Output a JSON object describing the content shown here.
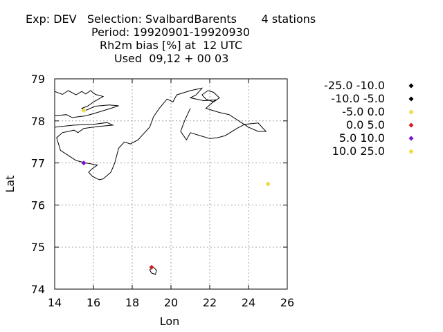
{
  "title_lines": [
    "Exp: DEV   Selection: SvalbardBarents       4 stations",
    "Period: 19920901-19920930",
    "Rh2m bias [%] at  12 UTC",
    "Used  09,12 + 00 03"
  ],
  "chart_data": {
    "type": "scatter",
    "xlabel": "Lon",
    "ylabel": "Lat",
    "xlim": [
      14,
      26
    ],
    "ylim": [
      74,
      79
    ],
    "xticks": [
      14,
      16,
      18,
      20,
      22,
      24,
      26
    ],
    "yticks": [
      74,
      75,
      76,
      77,
      78,
      79
    ],
    "grid": true,
    "legend_position": "right",
    "legend": [
      {
        "label": "-25.0 -10.0",
        "color": "#000000"
      },
      {
        "label": "-10.0 -5.0",
        "color": "#000000"
      },
      {
        "label": "-5.0 0.0",
        "color": "#f0d840"
      },
      {
        "label": "0.0 5.0",
        "color": "#d02020"
      },
      {
        "label": "5.0 10.0",
        "color": "#7a10c8"
      },
      {
        "label": "10.0 25.0",
        "color": "#f0d840"
      }
    ],
    "points": [
      {
        "lon": 15.5,
        "lat": 78.25,
        "class": 2
      },
      {
        "lon": 15.5,
        "lat": 77.0,
        "class": 4
      },
      {
        "lon": 25.0,
        "lat": 76.5,
        "class": 2
      },
      {
        "lon": 19.0,
        "lat": 74.52,
        "class": 3
      }
    ]
  }
}
